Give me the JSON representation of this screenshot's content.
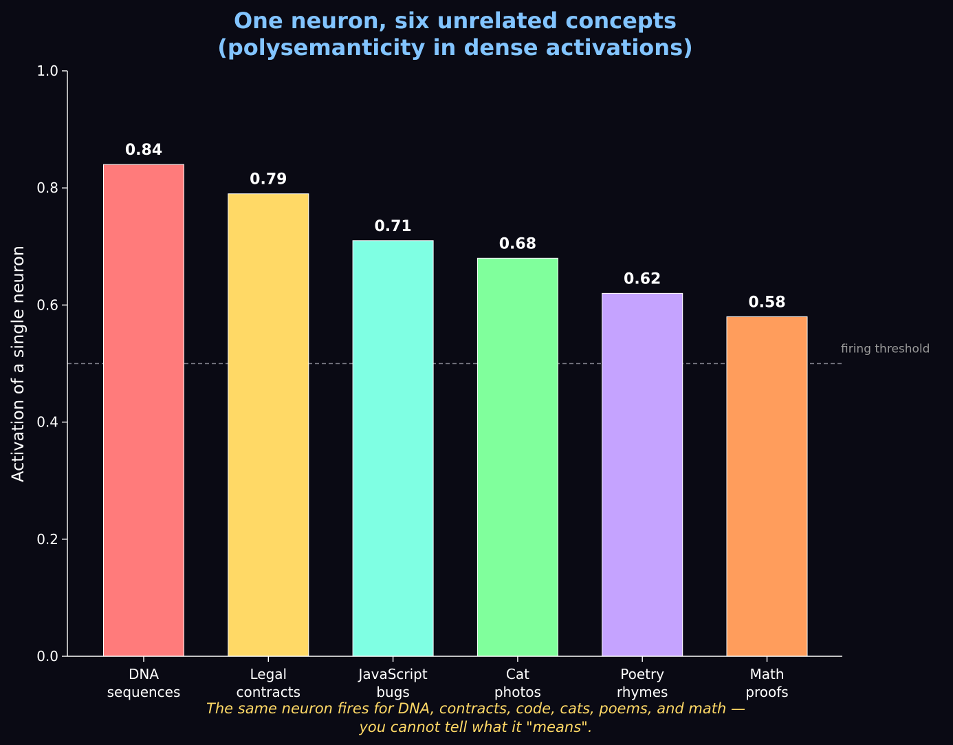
{
  "chart_data": {
    "type": "bar",
    "title": [
      "One neuron, six unrelated concepts",
      "(polysemanticity in dense activations)"
    ],
    "ylabel": "Activation of a single neuron",
    "xlabel": "",
    "ylim": [
      0,
      1.0
    ],
    "yticks": [
      "0.0",
      "0.2",
      "0.4",
      "0.6",
      "0.8",
      "1.0"
    ],
    "ytick_values": [
      0,
      0.2,
      0.4,
      0.6,
      0.8,
      1.0
    ],
    "grid": false,
    "categories": [
      [
        "DNA",
        "sequences"
      ],
      [
        "Legal",
        "contracts"
      ],
      [
        "JavaScript",
        "bugs"
      ],
      [
        "Cat",
        "photos"
      ],
      [
        "Poetry",
        "rhymes"
      ],
      [
        "Math",
        "proofs"
      ]
    ],
    "values": [
      0.84,
      0.79,
      0.71,
      0.68,
      0.62,
      0.58
    ],
    "value_labels": [
      "0.84",
      "0.79",
      "0.71",
      "0.68",
      "0.62",
      "0.58"
    ],
    "colors": [
      "#ff7b7b",
      "#ffd966",
      "#7fffe3",
      "#80ff9c",
      "#c5a3ff",
      "#ff9d5c"
    ],
    "threshold": {
      "value": 0.5,
      "label": "firing threshold"
    },
    "caption": [
      "The same neuron fires for DNA, contracts, code, cats, poems, and math —",
      "you cannot tell what it \"means\"."
    ]
  }
}
